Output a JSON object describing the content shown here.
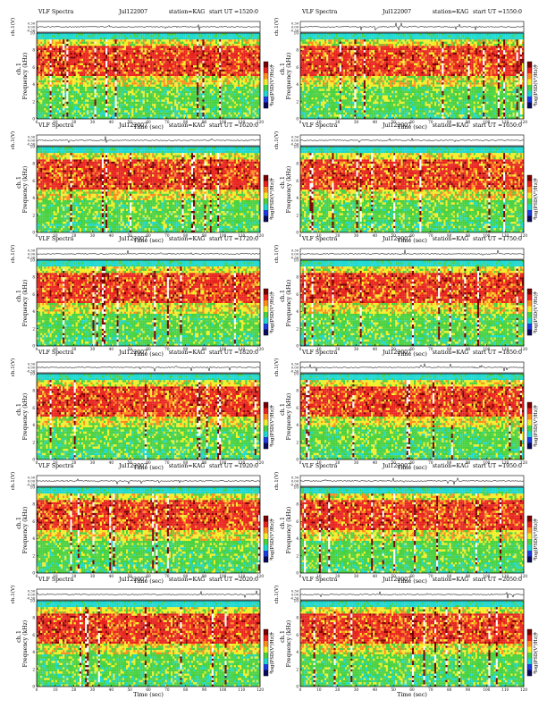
{
  "colors": {
    "dark_red": "#7a0000",
    "red": "#e8231e",
    "orange": "#ff8c1a",
    "yellow": "#f2ee2a",
    "green": "#48d13e",
    "cyan": "#1cd8cf",
    "blue": "#1c3ce0",
    "navy": "#0a0a5a"
  },
  "chart_data": [
    {
      "type": "heatmap",
      "title": "VLF Spectra",
      "date": "Jul122007",
      "station": "station=KAG",
      "start_ut": "start  UT  =1520:0",
      "wave_ylabel": "ch.1(V)",
      "wave_ticks": [
        "0.30",
        "0.00",
        "-0.30"
      ],
      "ylabel_top": "ch.1",
      "ylabel": "Frequency  (kHz)",
      "xlabel": "Time  (sec)",
      "x_ticks": [
        "0",
        "10",
        "20",
        "30",
        "40",
        "50",
        "60",
        "70",
        "80",
        "90",
        "100",
        "110",
        "120"
      ],
      "y_ticks": [
        "0",
        "2",
        "4",
        "6",
        "8",
        "10"
      ],
      "xlim": [
        0,
        120
      ],
      "ylim": [
        0,
        10
      ],
      "colorbar_label": "log(PSD(V²/Hz))",
      "colorbar_ticks": [
        "-4",
        "-8"
      ]
    },
    {
      "type": "heatmap",
      "title": "VLF Spectra",
      "date": "Jul122007",
      "station": "station=KAG",
      "start_ut": "start  UT  =1550:0",
      "wave_ylabel": "ch.1(V)",
      "wave_ticks": [
        "0.30",
        "0.00",
        "-0.30"
      ],
      "ylabel_top": "ch.1",
      "ylabel": "Frequency  (kHz)",
      "xlabel": "Time  (sec)",
      "x_ticks": [
        "0",
        "10",
        "20",
        "30",
        "40",
        "50",
        "60",
        "70",
        "80",
        "90",
        "100",
        "110",
        "120"
      ],
      "y_ticks": [
        "0",
        "2",
        "4",
        "6",
        "8",
        "10"
      ],
      "xlim": [
        0,
        120
      ],
      "ylim": [
        0,
        10
      ],
      "colorbar_label": "log(PSD(V²/Hz))",
      "colorbar_ticks": [
        "-4",
        "-8"
      ]
    },
    {
      "type": "heatmap",
      "title": "VLF Spectra",
      "date": "Jul122007",
      "station": "station=KAG",
      "start_ut": "start  UT  =1620:0",
      "wave_ylabel": "ch.1(V)",
      "wave_ticks": [
        "0.30",
        "0.00",
        "-0.30"
      ],
      "ylabel_top": "ch.1",
      "ylabel": "Frequency  (kHz)",
      "xlabel": "Time  (sec)",
      "x_ticks": [
        "0",
        "10",
        "20",
        "30",
        "40",
        "50",
        "60",
        "70",
        "80",
        "90",
        "100",
        "110",
        "120"
      ],
      "y_ticks": [
        "0",
        "2",
        "4",
        "6",
        "8",
        "10"
      ],
      "xlim": [
        0,
        120
      ],
      "ylim": [
        0,
        10
      ],
      "colorbar_label": "log(PSD(V²/Hz))",
      "colorbar_ticks": [
        "-4",
        "-8"
      ]
    },
    {
      "type": "heatmap",
      "title": "VLF Spectra",
      "date": "Jul122007",
      "station": "station=KAG",
      "start_ut": "start  UT  =1650:0",
      "wave_ylabel": "ch.1(V)",
      "wave_ticks": [
        "0.30",
        "0.00",
        "-0.30"
      ],
      "ylabel_top": "ch.1",
      "ylabel": "Frequency  (kHz)",
      "xlabel": "Time  (sec)",
      "x_ticks": [
        "0",
        "10",
        "20",
        "30",
        "40",
        "50",
        "60",
        "70",
        "80",
        "90",
        "100",
        "110",
        "120"
      ],
      "y_ticks": [
        "0",
        "2",
        "4",
        "6",
        "8",
        "10"
      ],
      "xlim": [
        0,
        120
      ],
      "ylim": [
        0,
        10
      ],
      "colorbar_label": "log(PSD(V²/Hz))",
      "colorbar_ticks": [
        "-4",
        "-8"
      ]
    },
    {
      "type": "heatmap",
      "title": "VLF Spectra",
      "date": "Jul122007",
      "station": "station=KAG",
      "start_ut": "start  UT  =1720:0",
      "wave_ylabel": "ch.1(V)",
      "wave_ticks": [
        "0.30",
        "0.00",
        "-0.30"
      ],
      "ylabel_top": "ch.1",
      "ylabel": "Frequency  (kHz)",
      "xlabel": "Time  (sec)",
      "x_ticks": [
        "0",
        "10",
        "20",
        "30",
        "40",
        "50",
        "60",
        "70",
        "80",
        "90",
        "100",
        "110",
        "120"
      ],
      "y_ticks": [
        "0",
        "2",
        "4",
        "6",
        "8",
        "10"
      ],
      "xlim": [
        0,
        120
      ],
      "ylim": [
        0,
        10
      ],
      "colorbar_label": "log(PSD(V²/Hz))",
      "colorbar_ticks": [
        "-4",
        "-8"
      ]
    },
    {
      "type": "heatmap",
      "title": "VLF Spectra",
      "date": "Jul122007",
      "station": "station=KAG",
      "start_ut": "start  UT  =1750:0",
      "wave_ylabel": "ch.1(V)",
      "wave_ticks": [
        "0.30",
        "0.00",
        "-0.30"
      ],
      "ylabel_top": "ch.1",
      "ylabel": "Frequency  (kHz)",
      "xlabel": "Time  (sec)",
      "x_ticks": [
        "0",
        "10",
        "20",
        "30",
        "40",
        "50",
        "60",
        "70",
        "80",
        "90",
        "100",
        "110",
        "120"
      ],
      "y_ticks": [
        "0",
        "2",
        "4",
        "6",
        "8",
        "10"
      ],
      "xlim": [
        0,
        120
      ],
      "ylim": [
        0,
        10
      ],
      "colorbar_label": "log(PSD(V²/Hz))",
      "colorbar_ticks": [
        "-4",
        "-8"
      ]
    },
    {
      "type": "heatmap",
      "title": "VLF Spectra",
      "date": "Jul122007",
      "station": "station=KAG",
      "start_ut": "start  UT  =1820:0",
      "wave_ylabel": "ch.1(V)",
      "wave_ticks": [
        "0.30",
        "0.00",
        "-0.30"
      ],
      "ylabel_top": "ch.1",
      "ylabel": "Frequency  (kHz)",
      "xlabel": "Time  (sec)",
      "x_ticks": [
        "0",
        "10",
        "20",
        "30",
        "40",
        "50",
        "60",
        "70",
        "80",
        "90",
        "100",
        "110",
        "120"
      ],
      "y_ticks": [
        "0",
        "2",
        "4",
        "6",
        "8",
        "10"
      ],
      "xlim": [
        0,
        120
      ],
      "ylim": [
        0,
        10
      ],
      "colorbar_label": "log(PSD(V²/Hz))",
      "colorbar_ticks": [
        "-4",
        "-8"
      ]
    },
    {
      "type": "heatmap",
      "title": "VLF Spectra",
      "date": "Jul122007",
      "station": "station=KAG",
      "start_ut": "start  UT  =1850:0",
      "wave_ylabel": "ch.1(V)",
      "wave_ticks": [
        "0.30",
        "0.00",
        "-0.30"
      ],
      "ylabel_top": "ch.1",
      "ylabel": "Frequency  (kHz)",
      "xlabel": "Time  (sec)",
      "x_ticks": [
        "0",
        "10",
        "20",
        "30",
        "40",
        "50",
        "60",
        "70",
        "80",
        "90",
        "100",
        "110",
        "120"
      ],
      "y_ticks": [
        "0",
        "2",
        "4",
        "6",
        "8",
        "10"
      ],
      "xlim": [
        0,
        120
      ],
      "ylim": [
        0,
        10
      ],
      "colorbar_label": "log(PSD(V²/Hz))",
      "colorbar_ticks": [
        "-4",
        "-8"
      ]
    },
    {
      "type": "heatmap",
      "title": "VLF Spectra",
      "date": "Jul122007",
      "station": "station=KAG",
      "start_ut": "start  UT  =1920:0",
      "wave_ylabel": "ch.1(V)",
      "wave_ticks": [
        "0.30",
        "0.00",
        "-0.30"
      ],
      "ylabel_top": "ch.1",
      "ylabel": "Frequency  (kHz)",
      "xlabel": "Time  (sec)",
      "x_ticks": [
        "0",
        "10",
        "20",
        "30",
        "40",
        "50",
        "60",
        "70",
        "80",
        "90",
        "100",
        "110",
        "120"
      ],
      "y_ticks": [
        "0",
        "2",
        "4",
        "6",
        "8",
        "10"
      ],
      "xlim": [
        0,
        120
      ],
      "ylim": [
        0,
        10
      ],
      "colorbar_label": "log(PSD(V²/Hz))",
      "colorbar_ticks": [
        "-4",
        "-8"
      ]
    },
    {
      "type": "heatmap",
      "title": "VLF Spectra",
      "date": "Jul122007",
      "station": "station=KAG",
      "start_ut": "start  UT  =1950:0",
      "wave_ylabel": "ch.1(V)",
      "wave_ticks": [
        "0.30",
        "0.00",
        "-0.30"
      ],
      "ylabel_top": "ch.1",
      "ylabel": "Frequency  (kHz)",
      "xlabel": "Time  (sec)",
      "x_ticks": [
        "0",
        "10",
        "20",
        "30",
        "40",
        "50",
        "60",
        "70",
        "80",
        "90",
        "100",
        "110",
        "120"
      ],
      "y_ticks": [
        "0",
        "2",
        "4",
        "6",
        "8",
        "10"
      ],
      "xlim": [
        0,
        120
      ],
      "ylim": [
        0,
        10
      ],
      "colorbar_label": "log(PSD(V²/Hz))",
      "colorbar_ticks": [
        "-4",
        "-8"
      ]
    },
    {
      "type": "heatmap",
      "title": "VLF Spectra",
      "date": "Jul122007",
      "station": "station=KAG",
      "start_ut": "start  UT  =2020:0",
      "wave_ylabel": "ch.1(V)",
      "wave_ticks": [
        "0.30",
        "0.00",
        "-0.30"
      ],
      "ylabel_top": "ch.1",
      "ylabel": "Frequency  (kHz)",
      "xlabel": "Time  (sec)",
      "x_ticks": [
        "0",
        "10",
        "20",
        "30",
        "40",
        "50",
        "60",
        "70",
        "80",
        "90",
        "100",
        "110",
        "120"
      ],
      "y_ticks": [
        "0",
        "2",
        "4",
        "6",
        "8",
        "10"
      ],
      "xlim": [
        0,
        120
      ],
      "ylim": [
        0,
        10
      ],
      "colorbar_label": "log(PSD(V²/Hz))",
      "colorbar_ticks": [
        "-4",
        "-8"
      ]
    },
    {
      "type": "heatmap",
      "title": "VLF Spectra",
      "date": "Jul122007",
      "station": "station=KAG",
      "start_ut": "start  UT  =2050:0",
      "wave_ylabel": "ch.1(V)",
      "wave_ticks": [
        "0.30",
        "0.00",
        "-0.30"
      ],
      "ylabel_top": "ch.1",
      "ylabel": "Frequency  (kHz)",
      "xlabel": "Time  (sec)",
      "x_ticks": [
        "0",
        "10",
        "20",
        "30",
        "40",
        "50",
        "60",
        "70",
        "80",
        "90",
        "100",
        "110",
        "120"
      ],
      "y_ticks": [
        "0",
        "2",
        "4",
        "6",
        "8",
        "10"
      ],
      "xlim": [
        0,
        120
      ],
      "ylim": [
        0,
        10
      ],
      "colorbar_label": "log(PSD(V²/Hz))",
      "colorbar_ticks": [
        "-4",
        "-8"
      ]
    }
  ]
}
